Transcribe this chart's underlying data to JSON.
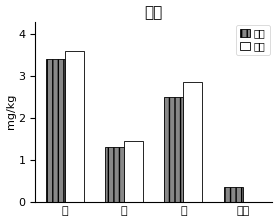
{
  "title": "玉米",
  "categories": [
    "根",
    "茎",
    "叶",
    "果实"
  ],
  "series": [
    {
      "label": "间作",
      "values": [
        3.42,
        1.3,
        2.5,
        0.35
      ],
      "color": "#888888",
      "hatch": "|||"
    },
    {
      "label": "单作",
      "values": [
        3.6,
        1.45,
        2.85,
        0.0
      ],
      "color": "#ffffff",
      "hatch": ""
    }
  ],
  "ylabel": "mg/kg",
  "ylim": [
    0,
    4.3
  ],
  "yticks": [
    0,
    1,
    2,
    3,
    4
  ],
  "bar_width": 0.32,
  "background_color": "#ffffff",
  "legend_position": "upper right",
  "title_fontsize": 11,
  "label_fontsize": 8,
  "tick_fontsize": 8
}
